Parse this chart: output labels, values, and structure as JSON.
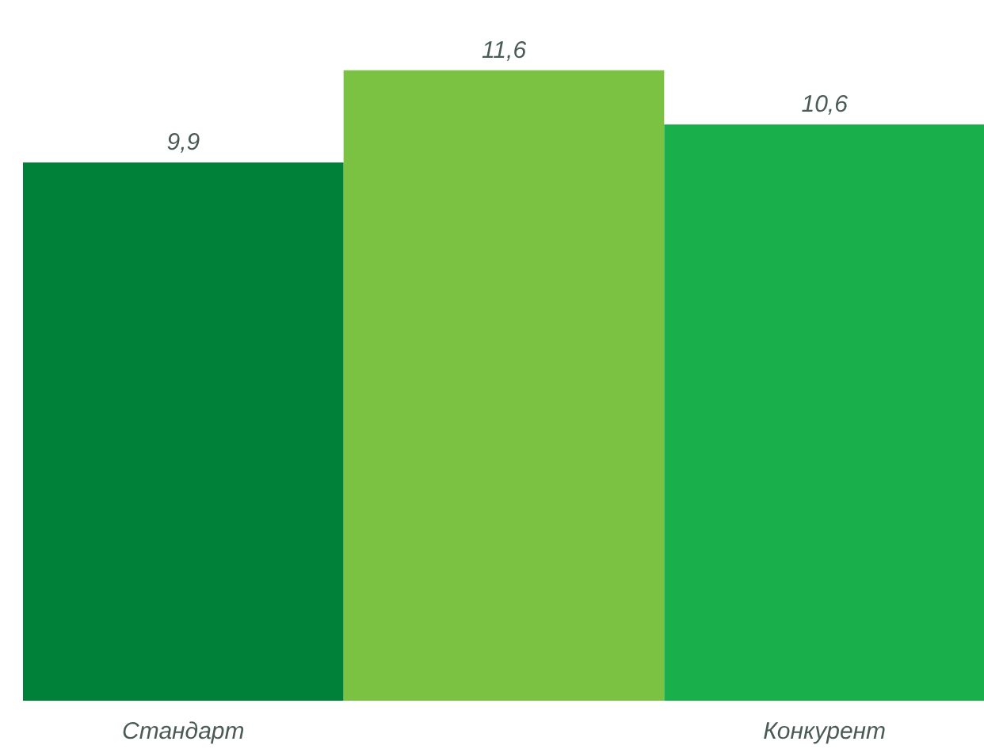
{
  "chart_data": {
    "type": "bar",
    "categories": [
      "Стандарт",
      null,
      "Конкурент"
    ],
    "values": [
      9.9,
      11.6,
      10.6
    ],
    "colors": [
      "#00813a",
      "#7cc242",
      "#19b04b"
    ],
    "value_labels": [
      "9,9",
      "11,6",
      "10,6"
    ],
    "tick_labels": "x"
  }
}
